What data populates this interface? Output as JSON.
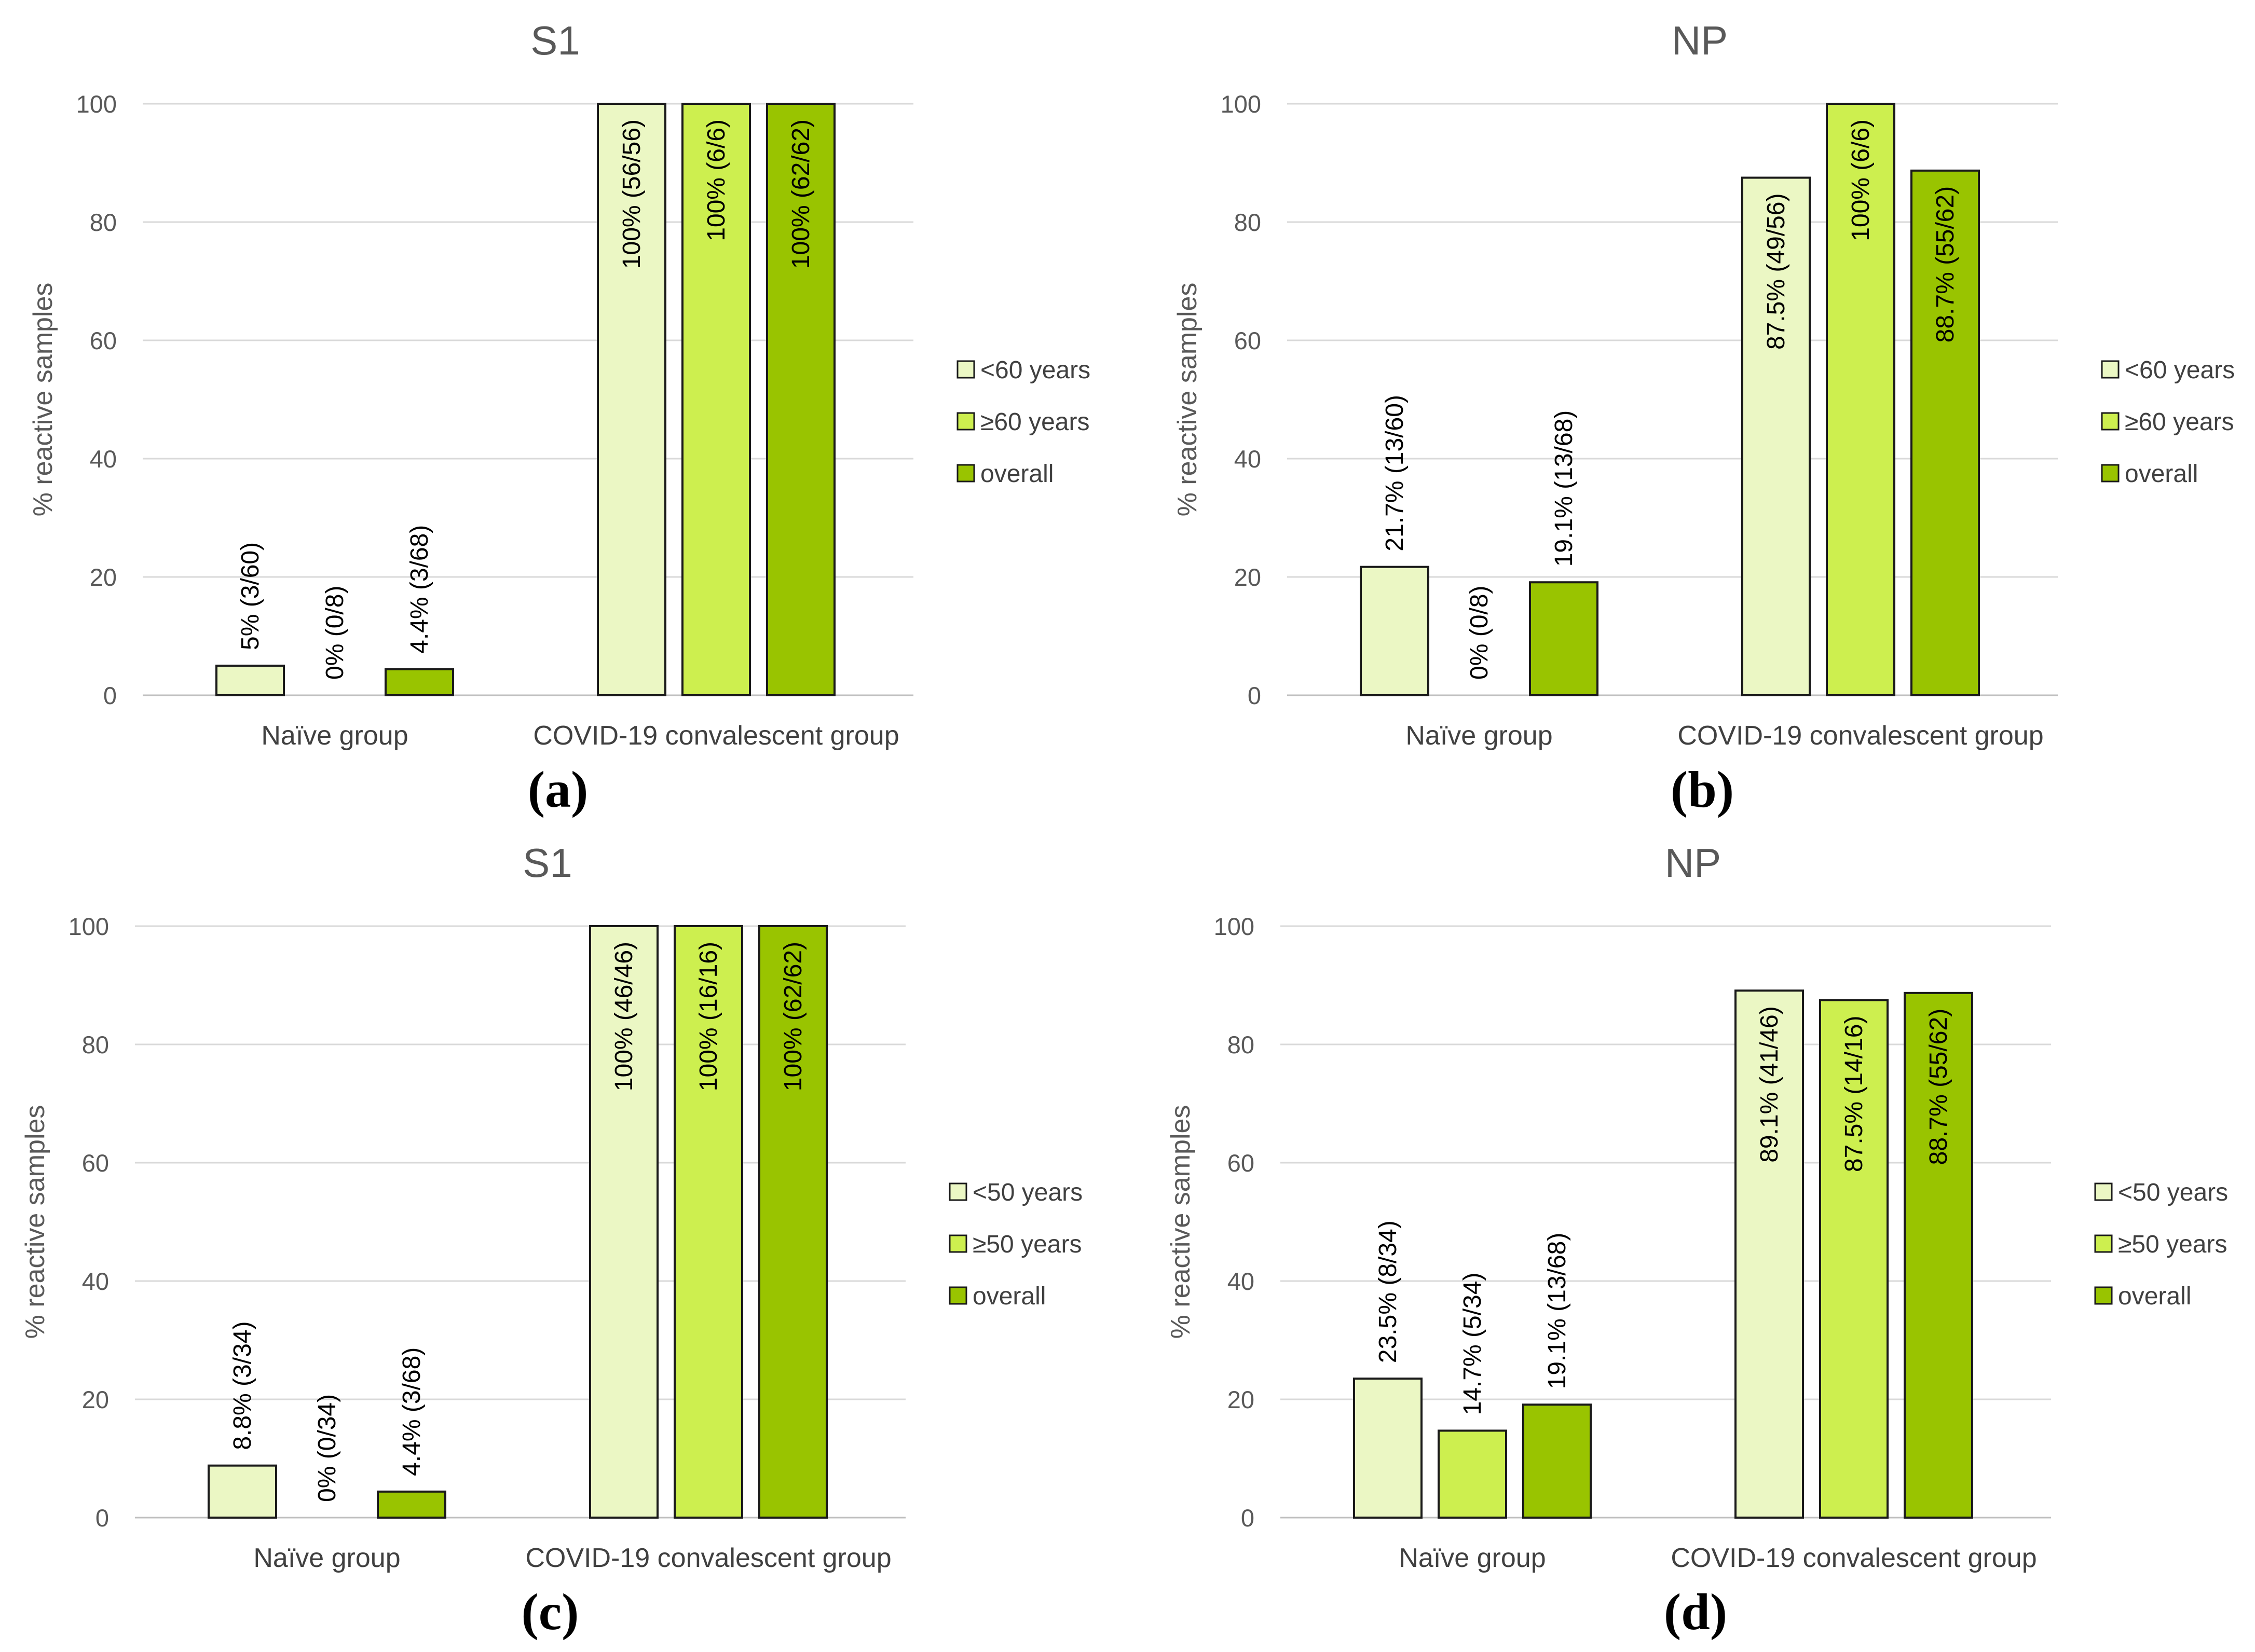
{
  "chart_data": [
    {
      "type": "bar",
      "panel_label": "(a)",
      "title": "S1",
      "ylabel": "% reactive samples",
      "xlabel": "",
      "ylim": [
        0,
        100
      ],
      "yticks": [
        "0",
        "20",
        "40",
        "60",
        "80",
        "100"
      ],
      "grid": true,
      "legend_position": "right",
      "categories": [
        "Naïve group",
        "COVID-19 convalescent group"
      ],
      "series": [
        {
          "name": "<60 years",
          "color": "#ebf7c4",
          "values": [
            5,
            100
          ],
          "labels": [
            "5% (3/60)",
            "100% (56/56)"
          ]
        },
        {
          "name": "≥60 years",
          "color": "#cdef4f",
          "values": [
            0,
            100
          ],
          "labels": [
            "0% (0/8)",
            "100% (6/6)"
          ]
        },
        {
          "name": "overall",
          "color": "#99c400",
          "values": [
            4.4,
            100
          ],
          "labels": [
            "4.4% (3/68)",
            "100% (62/62)"
          ]
        }
      ]
    },
    {
      "type": "bar",
      "panel_label": "(b)",
      "title": "NP",
      "ylabel": "% reactive samples",
      "xlabel": "",
      "ylim": [
        0,
        100
      ],
      "yticks": [
        "0",
        "20",
        "40",
        "60",
        "80",
        "100"
      ],
      "grid": true,
      "legend_position": "right",
      "categories": [
        "Naïve group",
        "COVID-19 convalescent group"
      ],
      "series": [
        {
          "name": "<60 years",
          "color": "#ebf7c4",
          "values": [
            21.7,
            87.5
          ],
          "labels": [
            "21.7% (13/60)",
            "87.5% (49/56)"
          ]
        },
        {
          "name": "≥60 years",
          "color": "#cdef4f",
          "values": [
            0,
            100
          ],
          "labels": [
            "0% (0/8)",
            "100% (6/6)"
          ]
        },
        {
          "name": "overall",
          "color": "#99c400",
          "values": [
            19.1,
            88.7
          ],
          "labels": [
            "19.1% (13/68)",
            "88.7% (55/62)"
          ]
        }
      ]
    },
    {
      "type": "bar",
      "panel_label": "(c)",
      "title": "S1",
      "ylabel": "% reactive samples",
      "xlabel": "",
      "ylim": [
        0,
        100
      ],
      "yticks": [
        "0",
        "20",
        "40",
        "60",
        "80",
        "100"
      ],
      "grid": true,
      "legend_position": "right",
      "categories": [
        "Naïve group",
        "COVID-19 convalescent group"
      ],
      "series": [
        {
          "name": "<50 years",
          "color": "#ebf7c4",
          "values": [
            8.8,
            100
          ],
          "labels": [
            "8.8% (3/34)",
            "100% (46/46)"
          ]
        },
        {
          "name": "≥50 years",
          "color": "#cdef4f",
          "values": [
            0,
            100
          ],
          "labels": [
            "0% (0/34)",
            "100% (16/16)"
          ]
        },
        {
          "name": "overall",
          "color": "#99c400",
          "values": [
            4.4,
            100
          ],
          "labels": [
            "4.4% (3/68)",
            "100% (62/62)"
          ]
        }
      ]
    },
    {
      "type": "bar",
      "panel_label": "(d)",
      "title": "NP",
      "ylabel": "% reactive samples",
      "xlabel": "",
      "ylim": [
        0,
        100
      ],
      "yticks": [
        "0",
        "20",
        "40",
        "60",
        "80",
        "100"
      ],
      "grid": true,
      "legend_position": "right",
      "categories": [
        "Naïve group",
        "COVID-19 convalescent group"
      ],
      "series": [
        {
          "name": "<50 years",
          "color": "#ebf7c4",
          "values": [
            23.5,
            89.1
          ],
          "labels": [
            "23.5% (8/34)",
            "89.1% (41/46)"
          ]
        },
        {
          "name": "≥50 years",
          "color": "#cdef4f",
          "values": [
            14.7,
            87.5
          ],
          "labels": [
            "14.7% (5/34)",
            "87.5% (14/16)"
          ]
        },
        {
          "name": "overall",
          "color": "#99c400",
          "values": [
            19.1,
            88.7
          ],
          "labels": [
            "19.1% (13/68)",
            "88.7% (55/62)"
          ]
        }
      ]
    }
  ]
}
